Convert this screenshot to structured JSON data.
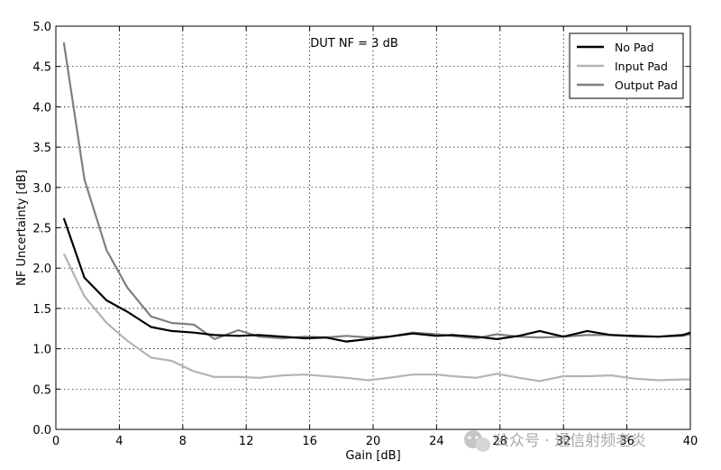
{
  "chart_data": {
    "type": "line",
    "title": "",
    "annotation": "DUT NF = 3 dB",
    "xlabel": "Gain [dB]",
    "ylabel": "NF Uncertainty [dB]",
    "xlim": [
      0,
      40
    ],
    "ylim": [
      0,
      5.0
    ],
    "xticks": [
      "0",
      "4",
      "8",
      "12",
      "16",
      "20",
      "24",
      "28",
      "32",
      "36",
      "40"
    ],
    "yticks": [
      "0.0",
      "0.5",
      "1.0",
      "1.5",
      "2.0",
      "2.5",
      "3.0",
      "3.5",
      "4.0",
      "4.5",
      "5.0"
    ],
    "grid": true,
    "legend_position": "top-right",
    "x": [
      0.5,
      1.8,
      3.2,
      4.5,
      6,
      7.3,
      8.7,
      10,
      11.5,
      12.8,
      14.3,
      15.7,
      17,
      18.3,
      19.7,
      21,
      22.5,
      24,
      25,
      26.5,
      27.8,
      29.2,
      30.5,
      32,
      33.5,
      35,
      36.5,
      38,
      39.5,
      40
    ],
    "series": [
      {
        "name": "No Pad",
        "color": "#000000",
        "values": [
          2.62,
          1.88,
          1.6,
          1.46,
          1.27,
          1.22,
          1.2,
          1.17,
          1.16,
          1.17,
          1.15,
          1.13,
          1.14,
          1.09,
          1.12,
          1.15,
          1.19,
          1.16,
          1.17,
          1.15,
          1.12,
          1.16,
          1.22,
          1.15,
          1.22,
          1.17,
          1.16,
          1.15,
          1.17,
          1.2
        ]
      },
      {
        "name": "Input Pad",
        "color": "#b4b4b4",
        "values": [
          2.18,
          1.65,
          1.32,
          1.1,
          0.89,
          0.85,
          0.72,
          0.65,
          0.65,
          0.64,
          0.67,
          0.68,
          0.66,
          0.64,
          0.61,
          0.64,
          0.68,
          0.68,
          0.66,
          0.64,
          0.69,
          0.64,
          0.6,
          0.66,
          0.66,
          0.67,
          0.63,
          0.61,
          0.62,
          0.62
        ]
      },
      {
        "name": "Output Pad",
        "color": "#7f7f7f",
        "values": [
          4.8,
          3.1,
          2.22,
          1.76,
          1.4,
          1.32,
          1.3,
          1.12,
          1.23,
          1.15,
          1.13,
          1.15,
          1.14,
          1.16,
          1.14,
          1.15,
          1.2,
          1.18,
          1.16,
          1.13,
          1.18,
          1.15,
          1.14,
          1.15,
          1.17,
          1.17,
          1.15,
          1.15,
          1.16,
          1.18
        ]
      }
    ]
  },
  "watermark": {
    "text": "公众号 · 通信射频老炎",
    "icon": "wechat-icon"
  }
}
